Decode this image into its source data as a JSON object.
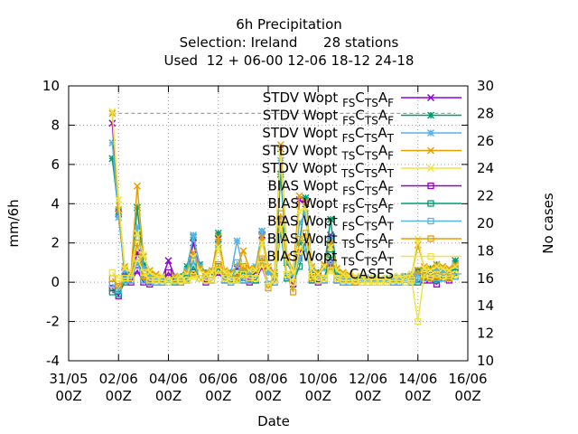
{
  "chart_data": {
    "type": "line",
    "title_lines": [
      "6h Precipitation",
      "Selection: Ireland      28 stations",
      "Used  12 + 06-00 12-06 18-12 24-18"
    ],
    "xlabel": "Date",
    "ylabel": "mm/6h",
    "y2label": "No cases",
    "ylim": [
      -4,
      10
    ],
    "y2lim": [
      10,
      30
    ],
    "xlim_days": [
      0,
      16
    ],
    "x_ticks": [
      {
        "d": 0,
        "l1": "31/05",
        "l2": "00Z"
      },
      {
        "d": 2,
        "l1": "02/06",
        "l2": "00Z"
      },
      {
        "d": 4,
        "l1": "04/06",
        "l2": "00Z"
      },
      {
        "d": 6,
        "l1": "06/06",
        "l2": "00Z"
      },
      {
        "d": 8,
        "l1": "08/06",
        "l2": "00Z"
      },
      {
        "d": 10,
        "l1": "10/06",
        "l2": "00Z"
      },
      {
        "d": 12,
        "l1": "12/06",
        "l2": "00Z"
      },
      {
        "d": 14,
        "l1": "14/06",
        "l2": "00Z"
      },
      {
        "d": 16,
        "l1": "16/06",
        "l2": "00Z"
      }
    ],
    "y_ticks": [
      -4,
      -2,
      0,
      2,
      4,
      6,
      8,
      10
    ],
    "y2_ticks": [
      10,
      12,
      14,
      16,
      18,
      20,
      22,
      24,
      26,
      28,
      30
    ],
    "grid": true,
    "legend_position": "top-right",
    "x": [
      1.75,
      2.0,
      2.25,
      2.5,
      2.75,
      3.0,
      3.25,
      3.5,
      3.75,
      4.0,
      4.25,
      4.5,
      4.75,
      5.0,
      5.25,
      5.5,
      5.75,
      6.0,
      6.25,
      6.5,
      6.75,
      7.0,
      7.25,
      7.5,
      7.75,
      8.0,
      8.25,
      8.5,
      8.75,
      9.0,
      9.25,
      9.5,
      9.75,
      10.0,
      10.25,
      10.5,
      10.75,
      11.0,
      11.25,
      11.5,
      11.75,
      12.0,
      12.25,
      12.5,
      12.75,
      13.0,
      13.25,
      13.5,
      13.75,
      14.0,
      14.25,
      14.5,
      14.75,
      15.0,
      15.25,
      15.5
    ],
    "series": [
      {
        "name": "STDV Wopt FS C TS A F",
        "color": "#9400d3",
        "marker": "x",
        "values": [
          8.1,
          3.5,
          0.5,
          0.3,
          1.5,
          0.8,
          0.2,
          0.3,
          0.2,
          1.1,
          0.3,
          0.2,
          0.5,
          2.0,
          0.8,
          0.3,
          0.5,
          2.2,
          0.3,
          0.4,
          0.7,
          0.4,
          0.3,
          0.5,
          2.4,
          0.6,
          0.2,
          6.8,
          1.2,
          0.3,
          4.2,
          4.0,
          0.5,
          0.3,
          0.9,
          2.4,
          0.5,
          0.3,
          0.2,
          0.2,
          0.2,
          0.2,
          0.1,
          0.1,
          0.1,
          0.2,
          0.2,
          0.2,
          0.3,
          0.5,
          0.4,
          0.5,
          0.7,
          0.6,
          0.5,
          0.8
        ]
      },
      {
        "name": "STDV Wopt FS C TS A F",
        "color": "#009e73",
        "marker": "asterisk",
        "values": [
          6.3,
          3.6,
          0.3,
          0.4,
          3.8,
          0.9,
          0.4,
          0.3,
          0.2,
          0.2,
          0.2,
          0.3,
          0.8,
          2.3,
          0.9,
          0.5,
          0.5,
          2.5,
          0.4,
          0.5,
          0.4,
          0.5,
          0.4,
          0.6,
          2.6,
          0.5,
          0.3,
          5.5,
          1.0,
          0.4,
          2.0,
          4.3,
          0.7,
          0.5,
          0.8,
          3.2,
          0.5,
          0.3,
          0.3,
          0.2,
          0.2,
          0.2,
          0.2,
          0.1,
          0.2,
          0.2,
          0.2,
          0.3,
          0.4,
          0.6,
          0.6,
          0.7,
          0.9,
          0.7,
          0.6,
          1.1
        ]
      },
      {
        "name": "STDV Wopt FS C TS A T",
        "color": "#56b4e9",
        "marker": "asterisk",
        "values": [
          7.1,
          3.3,
          0.6,
          0.3,
          2.8,
          0.7,
          0.3,
          0.3,
          0.2,
          0.2,
          0.3,
          0.2,
          0.6,
          2.4,
          0.8,
          0.4,
          0.6,
          2.0,
          0.5,
          0.4,
          2.1,
          0.6,
          0.5,
          0.8,
          2.6,
          0.5,
          0.4,
          6.2,
          1.1,
          0.4,
          3.0,
          3.5,
          0.6,
          0.4,
          0.7,
          2.2,
          0.6,
          0.4,
          0.3,
          0.2,
          0.2,
          0.2,
          0.1,
          0.1,
          0.1,
          0.2,
          0.2,
          0.2,
          0.3,
          0.4,
          0.5,
          0.6,
          0.6,
          0.5,
          0.5,
          0.7
        ]
      },
      {
        "name": "STDV Wopt TS C TS A F",
        "color": "#e69f00",
        "marker": "x",
        "values": [
          8.6,
          3.7,
          0.8,
          0.5,
          4.9,
          1.3,
          0.6,
          0.4,
          0.3,
          0.2,
          0.3,
          0.3,
          0.5,
          1.5,
          0.7,
          0.5,
          0.6,
          2.3,
          0.6,
          0.5,
          0.8,
          1.6,
          0.7,
          0.7,
          2.3,
          0.8,
          0.5,
          7.0,
          1.3,
          0.6,
          4.4,
          4.1,
          0.8,
          0.5,
          0.9,
          2.0,
          0.7,
          0.5,
          0.4,
          0.3,
          0.3,
          0.2,
          0.2,
          0.2,
          0.2,
          0.3,
          0.3,
          0.3,
          0.4,
          1.9,
          0.8,
          0.7,
          0.9,
          0.8,
          0.7,
          0.9
        ]
      },
      {
        "name": "STDV Wopt TS C TS A T",
        "color": "#f0e442",
        "marker": "x",
        "values": [
          8.7,
          4.2,
          0.7,
          0.5,
          2.5,
          1.4,
          0.5,
          0.3,
          0.3,
          0.2,
          0.2,
          0.3,
          0.4,
          1.3,
          0.6,
          0.4,
          0.5,
          1.8,
          0.5,
          0.4,
          0.5,
          0.9,
          0.6,
          0.6,
          2.0,
          0.7,
          0.4,
          6.6,
          1.2,
          0.5,
          3.6,
          3.8,
          0.7,
          0.4,
          0.8,
          1.8,
          0.6,
          0.4,
          0.3,
          0.3,
          0.3,
          0.2,
          0.2,
          0.2,
          0.2,
          0.3,
          0.3,
          0.3,
          0.4,
          2.2,
          0.7,
          0.6,
          0.8,
          0.7,
          0.6,
          0.8
        ]
      },
      {
        "name": "BIAS Wopt FS C TS A F",
        "color": "#9400d3",
        "marker": "square",
        "values": [
          -0.3,
          -0.7,
          0.1,
          0.0,
          0.6,
          0.0,
          -0.1,
          0.0,
          0.0,
          0.5,
          0.1,
          0.0,
          0.1,
          0.5,
          0.2,
          0.0,
          0.1,
          0.5,
          0.1,
          0.0,
          0.2,
          0.1,
          0.0,
          0.1,
          0.8,
          -0.2,
          0.0,
          3.2,
          0.2,
          -0.1,
          1.5,
          2.0,
          0.1,
          0.0,
          0.1,
          1.0,
          0.1,
          0.0,
          0.0,
          0.0,
          0.0,
          0.0,
          0.0,
          0.0,
          0.0,
          0.0,
          0.0,
          0.0,
          0.0,
          0.0,
          0.1,
          0.1,
          -0.1,
          0.2,
          0.1,
          0.3
        ]
      },
      {
        "name": "BIAS Wopt FS C TS A F",
        "color": "#009e73",
        "marker": "square",
        "values": [
          -0.5,
          -0.6,
          0.0,
          0.1,
          1.2,
          0.1,
          0.0,
          0.0,
          0.0,
          0.0,
          0.0,
          0.0,
          0.2,
          0.8,
          0.2,
          0.1,
          0.1,
          0.8,
          0.1,
          0.1,
          0.1,
          0.1,
          0.1,
          0.1,
          1.0,
          -0.1,
          0.0,
          2.6,
          0.2,
          0.0,
          0.8,
          2.2,
          0.1,
          0.1,
          0.2,
          1.4,
          0.1,
          0.0,
          0.0,
          0.0,
          0.0,
          0.0,
          0.0,
          0.0,
          0.0,
          0.0,
          0.0,
          0.0,
          0.0,
          0.0,
          0.2,
          0.2,
          0.1,
          0.3,
          0.2,
          0.5
        ]
      },
      {
        "name": "BIAS Wopt FS C TS A T",
        "color": "#56b4e9",
        "marker": "square",
        "values": [
          -0.1,
          -0.4,
          0.1,
          0.1,
          1.0,
          0.1,
          0.0,
          0.0,
          0.0,
          0.0,
          0.1,
          0.0,
          0.1,
          1.1,
          0.2,
          0.1,
          0.1,
          0.6,
          0.1,
          0.0,
          1.0,
          0.1,
          0.1,
          0.2,
          1.1,
          -0.1,
          0.0,
          2.9,
          0.3,
          0.0,
          1.2,
          1.7,
          0.2,
          0.1,
          0.1,
          0.9,
          0.1,
          0.0,
          0.0,
          0.0,
          0.0,
          0.0,
          0.0,
          0.0,
          0.0,
          0.0,
          0.0,
          0.0,
          0.0,
          0.1,
          0.2,
          0.2,
          0.2,
          0.2,
          0.2,
          0.3
        ]
      },
      {
        "name": "BIAS Wopt TS C TS A F",
        "color": "#e69f00",
        "marker": "square",
        "values": [
          0.2,
          -0.2,
          0.2,
          0.2,
          2.0,
          0.3,
          0.1,
          0.1,
          0.1,
          0.0,
          0.1,
          0.0,
          0.1,
          0.4,
          0.2,
          0.1,
          0.1,
          0.9,
          0.2,
          0.1,
          0.2,
          0.8,
          0.2,
          0.2,
          1.2,
          -0.3,
          0.1,
          3.5,
          0.4,
          -0.5,
          2.2,
          2.5,
          0.2,
          0.1,
          0.2,
          0.8,
          0.2,
          0.1,
          0.1,
          0.0,
          0.0,
          0.0,
          0.0,
          0.0,
          0.0,
          0.1,
          0.1,
          0.0,
          0.1,
          0.6,
          0.3,
          0.2,
          0.3,
          0.3,
          0.2,
          0.4
        ]
      },
      {
        "name": "BIAS Wopt TS C TS A T",
        "color": "#f0e442",
        "marker": "square",
        "values": [
          0.5,
          0.2,
          0.2,
          0.2,
          1.2,
          0.5,
          0.1,
          0.1,
          0.1,
          0.0,
          0.1,
          0.1,
          0.1,
          0.3,
          0.2,
          0.1,
          0.1,
          0.6,
          0.2,
          0.1,
          0.1,
          0.4,
          0.2,
          0.2,
          0.9,
          -0.2,
          0.1,
          3.0,
          0.4,
          0.0,
          1.6,
          2.2,
          0.3,
          0.1,
          0.2,
          0.6,
          0.2,
          0.1,
          0.1,
          0.1,
          0.0,
          0.0,
          0.0,
          0.0,
          0.0,
          0.1,
          0.1,
          0.0,
          0.1,
          -2.0,
          0.4,
          0.3,
          0.4,
          0.3,
          0.3,
          0.4
        ]
      }
    ],
    "cases_series": {
      "name": "CASES",
      "color": "#a0a0a0",
      "axis": "y2",
      "x": [
        1.75,
        15.5
      ],
      "values": [
        28,
        28
      ]
    },
    "legend": [
      {
        "label": "STDV Wopt",
        "sub1": "FS",
        "mid": "C",
        "sub2": "TS",
        "end": "A",
        "sub3": "F",
        "color": "#9400d3",
        "marker": "x"
      },
      {
        "label": "STDV Wopt",
        "sub1": "FS",
        "mid": "C",
        "sub2": "TS",
        "end": "A",
        "sub3": "F",
        "color": "#009e73",
        "marker": "asterisk"
      },
      {
        "label": "STDV Wopt",
        "sub1": "FS",
        "mid": "C",
        "sub2": "TS",
        "end": "A",
        "sub3": "T",
        "color": "#56b4e9",
        "marker": "asterisk"
      },
      {
        "label": "STDV Wopt",
        "sub1": "TS",
        "mid": "C",
        "sub2": "TS",
        "end": "A",
        "sub3": "F",
        "color": "#e69f00",
        "marker": "x"
      },
      {
        "label": "STDV Wopt",
        "sub1": "TS",
        "mid": "C",
        "sub2": "TS",
        "end": "A",
        "sub3": "T",
        "color": "#f0e442",
        "marker": "x"
      },
      {
        "label": "BIAS Wopt",
        "sub1": "FS",
        "mid": "C",
        "sub2": "TS",
        "end": "A",
        "sub3": "F",
        "color": "#9400d3",
        "marker": "square"
      },
      {
        "label": "BIAS Wopt",
        "sub1": "FS",
        "mid": "C",
        "sub2": "TS",
        "end": "A",
        "sub3": "F",
        "color": "#009e73",
        "marker": "square"
      },
      {
        "label": "BIAS Wopt",
        "sub1": "FS",
        "mid": "C",
        "sub2": "TS",
        "end": "A",
        "sub3": "T",
        "color": "#56b4e9",
        "marker": "square"
      },
      {
        "label": "BIAS Wopt",
        "sub1": "TS",
        "mid": "C",
        "sub2": "TS",
        "end": "A",
        "sub3": "F",
        "color": "#e69f00",
        "marker": "square"
      },
      {
        "label": "BIAS Wopt",
        "sub1": "TS",
        "mid": "C",
        "sub2": "TS",
        "end": "A",
        "sub3": "T",
        "color": "#f0e442",
        "marker": "square"
      },
      {
        "label": "CASES",
        "color": "#a0a0a0",
        "marker": "dash"
      }
    ]
  }
}
